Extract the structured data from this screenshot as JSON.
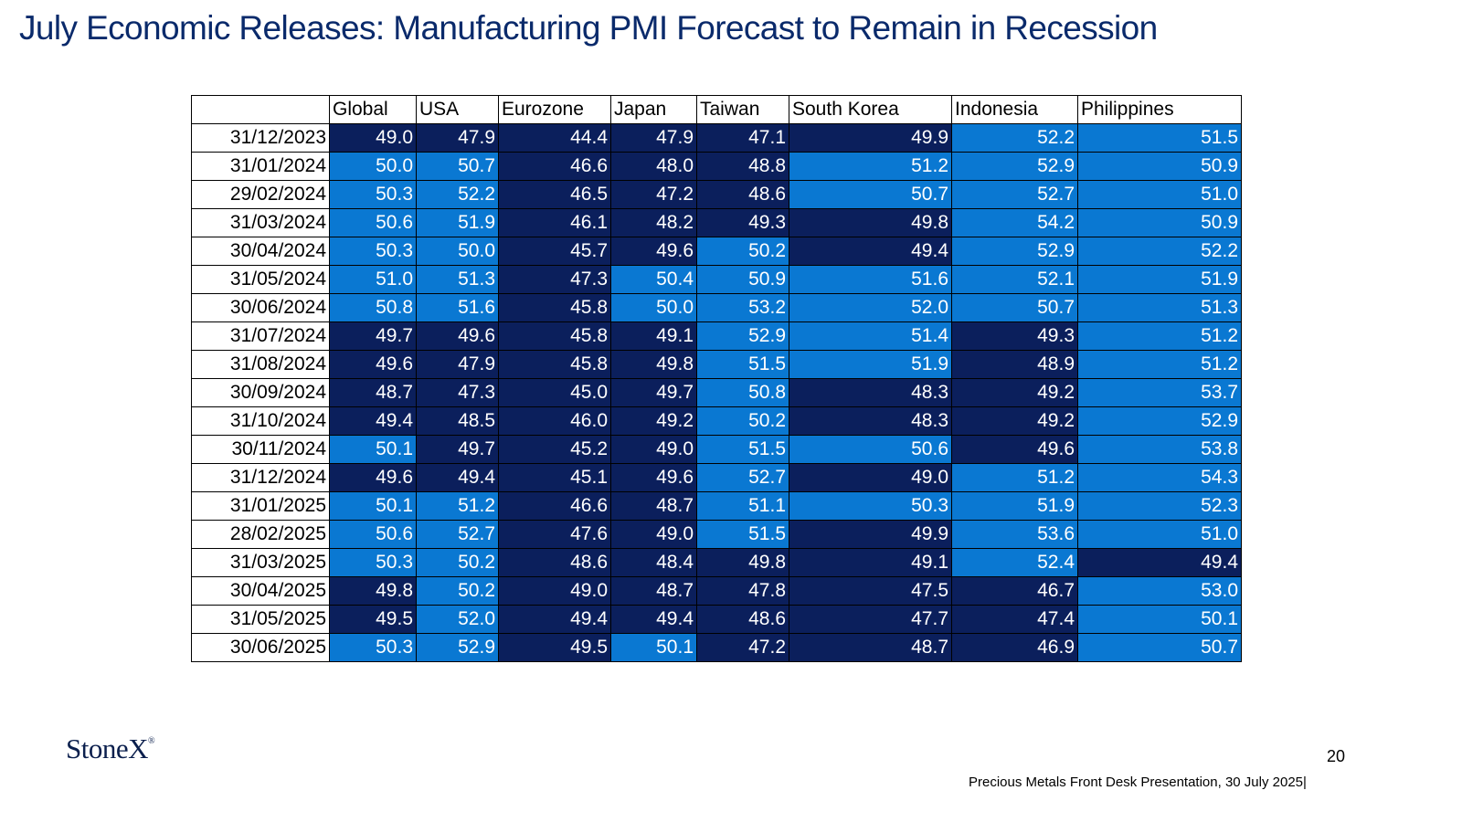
{
  "title": "July Economic Releases: Manufacturing PMI Forecast to Remain in Recession",
  "logo": {
    "text": "StoneX",
    "mark": "®"
  },
  "page_number": "20",
  "footer": "Precious Metals Front Desk Presentation, 30 July 2025|",
  "colors": {
    "below_50": "#0b1f5c",
    "above_50": "#0a78d2"
  },
  "chart_data": {
    "type": "table",
    "columns": [
      "Global",
      "USA",
      "Eurozone",
      "Japan",
      "Taiwan",
      "South Korea",
      "Indonesia",
      "Philippines"
    ],
    "rows": [
      {
        "date": "31/12/2023",
        "values": [
          "49.0",
          "47.9",
          "44.4",
          "47.9",
          "47.1",
          "49.9",
          "52.2",
          "51.5"
        ]
      },
      {
        "date": "31/01/2024",
        "values": [
          "50.0",
          "50.7",
          "46.6",
          "48.0",
          "48.8",
          "51.2",
          "52.9",
          "50.9"
        ]
      },
      {
        "date": "29/02/2024",
        "values": [
          "50.3",
          "52.2",
          "46.5",
          "47.2",
          "48.6",
          "50.7",
          "52.7",
          "51.0"
        ]
      },
      {
        "date": "31/03/2024",
        "values": [
          "50.6",
          "51.9",
          "46.1",
          "48.2",
          "49.3",
          "49.8",
          "54.2",
          "50.9"
        ]
      },
      {
        "date": "30/04/2024",
        "values": [
          "50.3",
          "50.0",
          "45.7",
          "49.6",
          "50.2",
          "49.4",
          "52.9",
          "52.2"
        ]
      },
      {
        "date": "31/05/2024",
        "values": [
          "51.0",
          "51.3",
          "47.3",
          "50.4",
          "50.9",
          "51.6",
          "52.1",
          "51.9"
        ]
      },
      {
        "date": "30/06/2024",
        "values": [
          "50.8",
          "51.6",
          "45.8",
          "50.0",
          "53.2",
          "52.0",
          "50.7",
          "51.3"
        ]
      },
      {
        "date": "31/07/2024",
        "values": [
          "49.7",
          "49.6",
          "45.8",
          "49.1",
          "52.9",
          "51.4",
          "49.3",
          "51.2"
        ]
      },
      {
        "date": "31/08/2024",
        "values": [
          "49.6",
          "47.9",
          "45.8",
          "49.8",
          "51.5",
          "51.9",
          "48.9",
          "51.2"
        ]
      },
      {
        "date": "30/09/2024",
        "values": [
          "48.7",
          "47.3",
          "45.0",
          "49.7",
          "50.8",
          "48.3",
          "49.2",
          "53.7"
        ]
      },
      {
        "date": "31/10/2024",
        "values": [
          "49.4",
          "48.5",
          "46.0",
          "49.2",
          "50.2",
          "48.3",
          "49.2",
          "52.9"
        ]
      },
      {
        "date": "30/11/2024",
        "values": [
          "50.1",
          "49.7",
          "45.2",
          "49.0",
          "51.5",
          "50.6",
          "49.6",
          "53.8"
        ]
      },
      {
        "date": "31/12/2024",
        "values": [
          "49.6",
          "49.4",
          "45.1",
          "49.6",
          "52.7",
          "49.0",
          "51.2",
          "54.3"
        ]
      },
      {
        "date": "31/01/2025",
        "values": [
          "50.1",
          "51.2",
          "46.6",
          "48.7",
          "51.1",
          "50.3",
          "51.9",
          "52.3"
        ]
      },
      {
        "date": "28/02/2025",
        "values": [
          "50.6",
          "52.7",
          "47.6",
          "49.0",
          "51.5",
          "49.9",
          "53.6",
          "51.0"
        ]
      },
      {
        "date": "31/03/2025",
        "values": [
          "50.3",
          "50.2",
          "48.6",
          "48.4",
          "49.8",
          "49.1",
          "52.4",
          "49.4"
        ]
      },
      {
        "date": "30/04/2025",
        "values": [
          "49.8",
          "50.2",
          "49.0",
          "48.7",
          "47.8",
          "47.5",
          "46.7",
          "53.0"
        ]
      },
      {
        "date": "31/05/2025",
        "values": [
          "49.5",
          "52.0",
          "49.4",
          "49.4",
          "48.6",
          "47.7",
          "47.4",
          "50.1"
        ]
      },
      {
        "date": "30/06/2025",
        "values": [
          "50.3",
          "52.9",
          "49.5",
          "50.1",
          "47.2",
          "48.7",
          "46.9",
          "50.7"
        ]
      }
    ]
  }
}
